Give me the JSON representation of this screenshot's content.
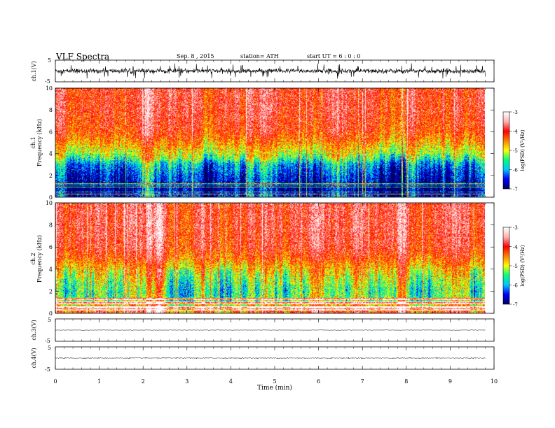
{
  "header": {
    "title": "VLF  Spectra",
    "date": "Sep. 8  , 2015",
    "station": "station= ATH",
    "start": "start  UT  =   6  : 0  : 0"
  },
  "chart_data": [
    {
      "type": "line",
      "panel": "ch1-waveform",
      "ylabel": "ch.1(V)",
      "ylim": [
        -5,
        5
      ],
      "yticks": [
        "5",
        "-5"
      ],
      "xlim": [
        0,
        10
      ],
      "note_values": {
        "baseline": 0,
        "typical_amplitude": 1.2,
        "spike_amplitude": 3.5
      }
    },
    {
      "type": "heatmap",
      "panel": "ch1-spectrogram",
      "ylabel_channel": "ch.1",
      "ylabel": "Frequency  (kHz)",
      "ylim": [
        0,
        10
      ],
      "yticks": [
        "0",
        "2",
        "4",
        "6",
        "8",
        "10"
      ],
      "xlim": [
        0,
        9.8
      ],
      "colorbar": {
        "label": "log(PSD) (V²/Hz)",
        "range": [
          -7,
          -3
        ],
        "ticks": [
          "-3",
          "-4",
          "-5",
          "-6",
          "-7"
        ]
      },
      "profile_kHz": [
        [
          0.0,
          -6.4
        ],
        [
          0.5,
          -6.9
        ],
        [
          1.0,
          -6.8
        ],
        [
          2.0,
          -6.5
        ],
        [
          3.0,
          -6.1
        ],
        [
          3.5,
          -5.5
        ],
        [
          4.0,
          -5.1
        ],
        [
          5.0,
          -4.6
        ],
        [
          6.0,
          -4.2
        ],
        [
          8.0,
          -4.0
        ],
        [
          10.0,
          -4.0
        ]
      ]
    },
    {
      "type": "heatmap",
      "panel": "ch2-spectrogram",
      "ylabel_channel": "ch.2",
      "ylabel": "Frequency  (kHz)",
      "ylim": [
        0,
        10
      ],
      "yticks": [
        "0",
        "2",
        "4",
        "6",
        "8",
        "10"
      ],
      "xlim": [
        0,
        9.8
      ],
      "colorbar": {
        "label": "log(PSD) (V²/Hz)",
        "range": [
          -7,
          -3
        ],
        "ticks": [
          "-3",
          "-4",
          "-5",
          "-6",
          "-7"
        ]
      },
      "profile_kHz": [
        [
          0.0,
          -4.2
        ],
        [
          0.5,
          -4.4
        ],
        [
          1.0,
          -5.3
        ],
        [
          2.0,
          -5.5
        ],
        [
          3.0,
          -5.2
        ],
        [
          4.0,
          -4.8
        ],
        [
          5.0,
          -4.3
        ],
        [
          6.0,
          -4.0
        ],
        [
          8.0,
          -3.9
        ],
        [
          10.0,
          -3.9
        ]
      ]
    },
    {
      "type": "line",
      "panel": "ch3-waveform",
      "ylabel": "ch.3(V)",
      "ylim": [
        -5,
        5
      ],
      "yticks": [
        "5",
        "-5"
      ],
      "xlim": [
        0,
        10
      ],
      "note_values": {
        "baseline": 0,
        "typical_amplitude": 0.1
      }
    },
    {
      "type": "line",
      "panel": "ch4-waveform",
      "ylabel": "ch.4(V)",
      "ylim": [
        -5,
        5
      ],
      "yticks": [
        "5",
        "-5"
      ],
      "xlim": [
        0,
        10
      ],
      "note_values": {
        "baseline": 0,
        "typical_amplitude": 0.25
      }
    }
  ],
  "xaxis": {
    "label": "Time  (min)",
    "ticks": [
      "0",
      "1",
      "2",
      "3",
      "4",
      "5",
      "6",
      "7",
      "8",
      "9",
      "10"
    ],
    "range": [
      0,
      10
    ]
  },
  "colors": {
    "scale": [
      "#000060",
      "#0000ff",
      "#00c8ff",
      "#00ff80",
      "#ffff00",
      "#ff8000",
      "#ff0000",
      "#ffb0b0",
      "#ffffff"
    ]
  }
}
